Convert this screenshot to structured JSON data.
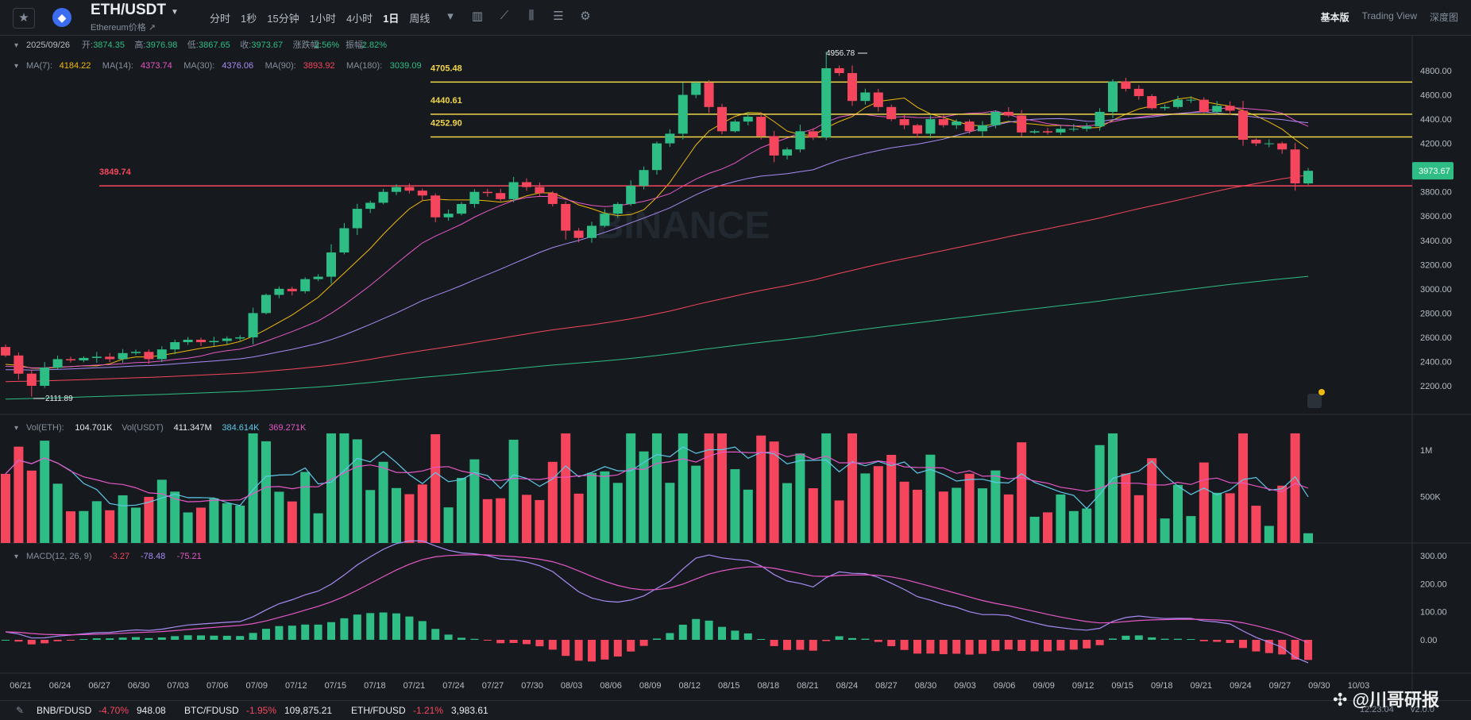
{
  "header": {
    "pair": "ETH/USDT",
    "subtitle": "Ethereum价格 ↗",
    "intervals": [
      {
        "label": "分时",
        "active": false
      },
      {
        "label": "1秒",
        "active": false
      },
      {
        "label": "15分钟",
        "active": false
      },
      {
        "label": "1小时",
        "active": false
      },
      {
        "label": "4小时",
        "active": false
      },
      {
        "label": "1日",
        "active": true
      },
      {
        "label": "周线",
        "active": false
      }
    ],
    "tool_icons": [
      "dropdown-caret-icon",
      "candle-type-icon",
      "indicator-icon",
      "compare-icon",
      "layout-icon",
      "settings-gear-icon"
    ],
    "views": [
      {
        "label": "基本版",
        "active": true
      },
      {
        "label": "Trading View",
        "active": false
      },
      {
        "label": "深度图",
        "active": false
      }
    ]
  },
  "ohlc": {
    "date": "2025/09/26",
    "open_label": "开:",
    "open": "3874.35",
    "high_label": "高:",
    "high": "3976.98",
    "low_label": "低:",
    "low": "3867.65",
    "close_label": "收:",
    "close": "3973.67",
    "change_label": "涨跌幅:",
    "change": "2.56%",
    "amp_label": "振幅:",
    "amp": "2.82%"
  },
  "ma_legend": [
    {
      "label": "MA(7):",
      "value": "4184.22",
      "color": "#f0b90b"
    },
    {
      "label": "MA(14):",
      "value": "4373.74",
      "color": "#e557c6"
    },
    {
      "label": "MA(30):",
      "value": "4376.06",
      "color": "#a98af5"
    },
    {
      "label": "MA(90):",
      "value": "3893.92",
      "color": "#f6465d"
    },
    {
      "label": "MA(180):",
      "value": "3039.09",
      "color": "#2ebd85"
    }
  ],
  "vol_legend": {
    "label1": "Vol(ETH):",
    "v1": "104.701K",
    "label2": "Vol(USDT)",
    "v2": "411.347M",
    "v3": "384.614K",
    "v4": "369.271K"
  },
  "macd_legend": {
    "label": "MACD(12, 26, 9)",
    "v1": "-3.27",
    "v2": "-78.48",
    "v3": "-75.21"
  },
  "annotations": {
    "high_label": "4956.78",
    "low_label": "2111.89",
    "lines": [
      {
        "label": "4705.48",
        "value": 4705.48,
        "color": "#f0d54a"
      },
      {
        "label": "4440.61",
        "value": 4440.61,
        "color": "#f0d54a"
      },
      {
        "label": "4252.90",
        "value": 4252.9,
        "color": "#f0d54a"
      },
      {
        "label": "3849.74",
        "value": 3849.74,
        "color": "#f6465d"
      }
    ],
    "last_price": "3973.67",
    "watermark": "BINANCE"
  },
  "chart_data": {
    "type": "candlestick",
    "price_axis": {
      "ticks": [
        "4800.00",
        "4600.00",
        "4400.00",
        "4200.00",
        "4000.00",
        "3800.00",
        "3600.00",
        "3400.00",
        "3200.00",
        "3000.00",
        "2800.00",
        "2600.00",
        "2400.00",
        "2200.00"
      ],
      "values": [
        4800,
        4600,
        4400,
        4200,
        4000,
        3800,
        3600,
        3400,
        3200,
        3000,
        2800,
        2600,
        2400,
        2200
      ]
    },
    "volume_axis": {
      "ticks": [
        "1M",
        "500K"
      ],
      "values": [
        1000000,
        500000
      ]
    },
    "macd_axis": {
      "ticks": [
        "300.00",
        "200.00",
        "100.00",
        "0.00"
      ],
      "values": [
        300,
        200,
        100,
        0
      ]
    },
    "date_ticks": [
      "06/21",
      "06/24",
      "06/27",
      "06/30",
      "07/03",
      "07/06",
      "07/09",
      "07/12",
      "07/15",
      "07/18",
      "07/21",
      "07/24",
      "07/27",
      "07/30",
      "08/03",
      "08/06",
      "08/09",
      "08/12",
      "08/15",
      "08/18",
      "08/21",
      "08/24",
      "08/27",
      "08/30",
      "09/03",
      "09/06",
      "09/09",
      "09/12",
      "09/15",
      "09/18",
      "09/21",
      "09/24",
      "09/27",
      "09/30",
      "10/03"
    ],
    "close": [
      2450,
      2300,
      2200,
      2350,
      2420,
      2410,
      2430,
      2440,
      2420,
      2470,
      2480,
      2420,
      2500,
      2560,
      2580,
      2560,
      2570,
      2590,
      2600,
      2800,
      2950,
      3000,
      2980,
      3080,
      3100,
      3300,
      3500,
      3660,
      3710,
      3800,
      3840,
      3810,
      3770,
      3590,
      3620,
      3700,
      3800,
      3790,
      3740,
      3880,
      3840,
      3790,
      3700,
      3480,
      3420,
      3520,
      3620,
      3700,
      3850,
      3980,
      4200,
      4280,
      4600,
      4700,
      4500,
      4300,
      4380,
      4420,
      4260,
      4100,
      4150,
      4300,
      4250,
      4820,
      4780,
      4550,
      4620,
      4500,
      4400,
      4350,
      4280,
      4400,
      4350,
      4380,
      4300,
      4350,
      4460,
      4430,
      4290,
      4300,
      4290,
      4320,
      4320,
      4340,
      4460,
      4710,
      4650,
      4590,
      4490,
      4500,
      4560,
      4560,
      4460,
      4510,
      4470,
      4230,
      4200,
      4200,
      4150,
      3870,
      3973.67
    ]
  },
  "bottom": {
    "tickers": [
      {
        "name": "BNB/FDUSD",
        "change": "-4.70%",
        "price": "948.08"
      },
      {
        "name": "BTC/FDUSD",
        "change": "-1.95%",
        "price": "109,875.21"
      },
      {
        "name": "ETH/FDUSD",
        "change": "-1.21%",
        "price": "3,983.61"
      }
    ],
    "time": "12:23:04",
    "version": "v2.0.0",
    "watermark": "@川哥研报"
  }
}
